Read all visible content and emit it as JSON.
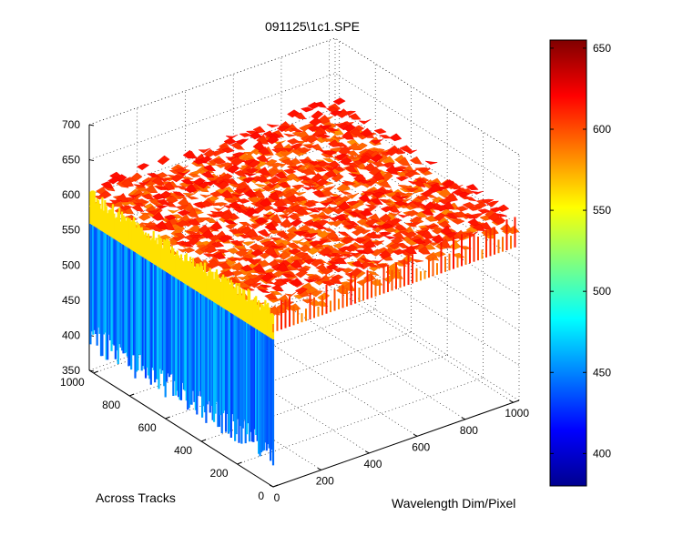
{
  "chart_data": {
    "type": "surface",
    "title": "091125\\1c1.SPE",
    "xlabel": "Wavelength Dim/Pixel",
    "ylabel": "Across Tracks",
    "zlabel": "",
    "xlim": [
      0,
      1024
    ],
    "ylim": [
      0,
      1024
    ],
    "zlim": [
      350,
      700
    ],
    "x_ticks": [
      0,
      200,
      400,
      600,
      800,
      1000
    ],
    "y_ticks": [
      0,
      200,
      400,
      600,
      800,
      1000
    ],
    "z_ticks": [
      350,
      400,
      450,
      500,
      550,
      600,
      650,
      700
    ],
    "grid": true,
    "colormap": "jet",
    "colorbar": {
      "position": "right",
      "range": [
        380,
        655
      ],
      "ticks": [
        400,
        450,
        500,
        550,
        600,
        650
      ]
    },
    "surface": {
      "plateau_mean": 600,
      "plateau_noise": 18,
      "edge_strip_x_range": [
        0,
        12
      ],
      "edge_strip_mean": 450,
      "edge_strip_range": [
        380,
        560
      ],
      "transition_value": 560
    }
  }
}
